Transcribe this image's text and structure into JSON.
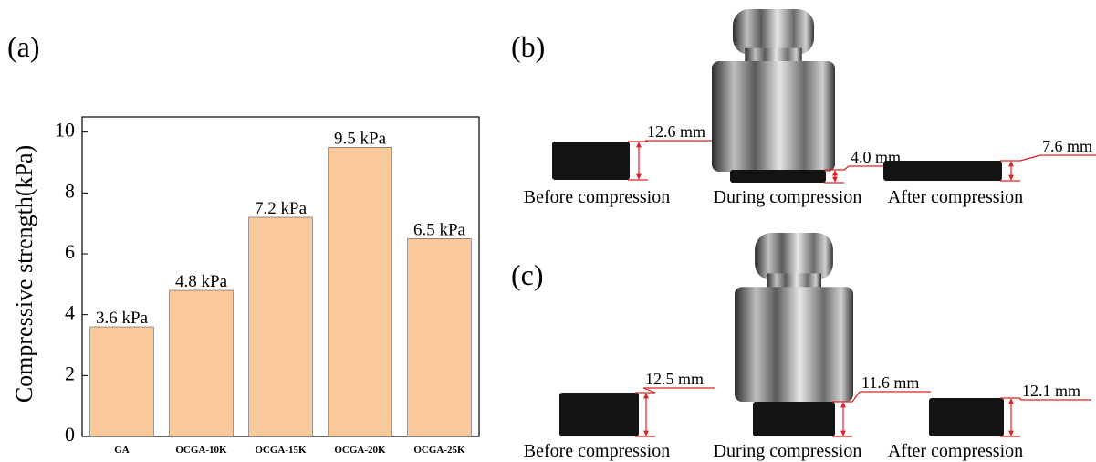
{
  "chart_data": {
    "type": "bar",
    "panel_label": "(a)",
    "y_label": "Compressive strength(kPa)",
    "categories": [
      "GA",
      "OCGA-10K",
      "OCGA-15K",
      "OCGA-20K",
      "OCGA-25K"
    ],
    "values": [
      3.6,
      4.8,
      7.2,
      9.5,
      6.5
    ],
    "value_labels": [
      "3.6 kPa",
      "4.8 kPa",
      "7.2 kPa",
      "9.5 kPa",
      "6.5 kPa"
    ],
    "color": "#f9c89b",
    "ylim": [
      0,
      10.5
    ],
    "yticks": [
      0,
      2,
      4,
      6,
      8,
      10
    ],
    "grid": false
  },
  "photo_panels": [
    {
      "label": "(b)",
      "stages": [
        {
          "caption": "Before compression",
          "thickness": "12.6 mm"
        },
        {
          "caption": "During compression",
          "thickness": "4.0 mm"
        },
        {
          "caption": "After compression",
          "thickness": "7.6 mm"
        }
      ]
    },
    {
      "label": "(c)",
      "stages": [
        {
          "caption": "Before compression",
          "thickness": "12.5 mm"
        },
        {
          "caption": "During compression",
          "thickness": "11.6 mm"
        },
        {
          "caption": "After compression",
          "thickness": "12.1 mm"
        }
      ]
    }
  ]
}
